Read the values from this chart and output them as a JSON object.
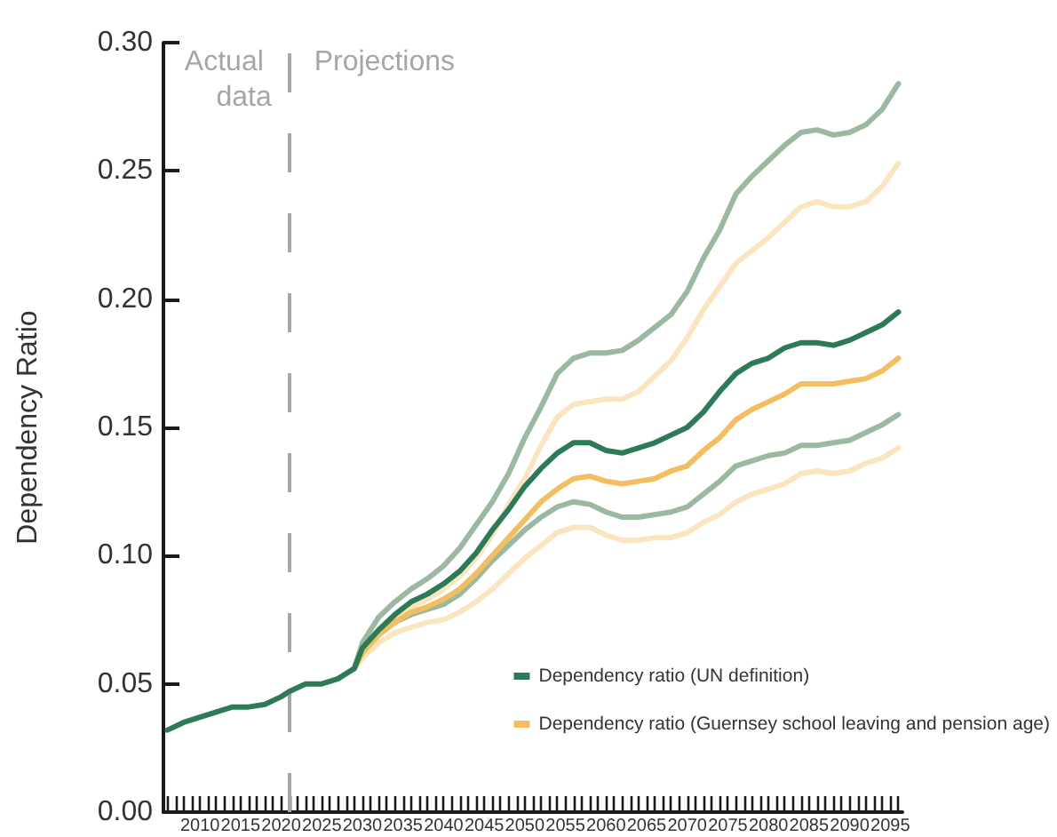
{
  "chart_data": {
    "type": "line",
    "ylabel": "Dependency Ratio",
    "annotations": [
      "Actual data",
      "Projections"
    ],
    "ref_lines": [
      {
        "axis": "x",
        "value": 2021,
        "color": "#a6a6a6",
        "line_style": "dashed"
      }
    ],
    "x": [
      2006,
      2008,
      2010,
      2012,
      2014,
      2016,
      2018,
      2020,
      2021,
      2023,
      2025,
      2027,
      2029,
      2030,
      2032,
      2034,
      2036,
      2038,
      2040,
      2042,
      2044,
      2046,
      2048,
      2050,
      2052,
      2054,
      2056,
      2058,
      2060,
      2062,
      2064,
      2066,
      2068,
      2070,
      2072,
      2074,
      2076,
      2078,
      2080,
      2082,
      2084,
      2086,
      2088,
      2090,
      2092,
      2094,
      2096
    ],
    "series": [
      {
        "name": "Dependency ratio (UN definition)",
        "color": "#2c7a56",
        "values": [
          0.032,
          0.035,
          0.037,
          0.039,
          0.041,
          0.041,
          0.042,
          0.045,
          0.047,
          0.05,
          0.05,
          0.052,
          0.056,
          0.064,
          0.071,
          0.077,
          0.082,
          0.085,
          0.089,
          0.094,
          0.101,
          0.11,
          0.118,
          0.127,
          0.134,
          0.14,
          0.144,
          0.144,
          0.141,
          0.14,
          0.142,
          0.144,
          0.147,
          0.15,
          0.156,
          0.164,
          0.171,
          0.175,
          0.177,
          0.181,
          0.183,
          0.183,
          0.182,
          0.184,
          0.187,
          0.19,
          0.195
        ]
      },
      {
        "name": "Dependency ratio (Guernsey school leaving and pension age)",
        "color": "#f3bd62",
        "values": [
          null,
          null,
          null,
          null,
          null,
          null,
          null,
          null,
          null,
          null,
          null,
          null,
          0.056,
          0.062,
          0.069,
          0.074,
          0.078,
          0.08,
          0.083,
          0.087,
          0.093,
          0.1,
          0.107,
          0.114,
          0.121,
          0.126,
          0.13,
          0.131,
          0.129,
          0.128,
          0.129,
          0.13,
          0.133,
          0.135,
          0.141,
          0.146,
          0.153,
          0.157,
          0.16,
          0.163,
          0.167,
          0.167,
          0.167,
          0.168,
          0.169,
          0.172,
          0.177
        ]
      },
      {
        "color": "#9bb8a0",
        "values": [
          null,
          null,
          null,
          null,
          null,
          null,
          null,
          null,
          null,
          null,
          null,
          null,
          0.056,
          0.066,
          0.076,
          0.082,
          0.087,
          0.091,
          0.096,
          0.103,
          0.112,
          0.121,
          0.132,
          0.146,
          0.158,
          0.171,
          0.177,
          0.179,
          0.179,
          0.18,
          0.184,
          0.189,
          0.194,
          0.203,
          0.216,
          0.227,
          0.241,
          0.248,
          0.254,
          0.26,
          0.265,
          0.266,
          0.264,
          0.265,
          0.268,
          0.274,
          0.284
        ]
      },
      {
        "color": "#9bb8a0",
        "values": [
          null,
          null,
          null,
          null,
          null,
          null,
          null,
          null,
          null,
          null,
          null,
          null,
          0.056,
          0.063,
          0.07,
          0.074,
          0.077,
          0.079,
          0.081,
          0.085,
          0.091,
          0.098,
          0.104,
          0.11,
          0.115,
          0.119,
          0.121,
          0.12,
          0.117,
          0.115,
          0.115,
          0.116,
          0.117,
          0.119,
          0.124,
          0.129,
          0.135,
          0.137,
          0.139,
          0.14,
          0.143,
          0.143,
          0.144,
          0.145,
          0.148,
          0.151,
          0.155
        ]
      },
      {
        "color": "#fbe5bf",
        "values": [
          null,
          null,
          null,
          null,
          null,
          null,
          null,
          null,
          null,
          null,
          null,
          null,
          0.056,
          0.065,
          0.071,
          0.076,
          0.08,
          0.083,
          0.087,
          0.092,
          0.099,
          0.108,
          0.12,
          0.13,
          0.143,
          0.154,
          0.159,
          0.16,
          0.161,
          0.161,
          0.164,
          0.17,
          0.176,
          0.185,
          0.196,
          0.205,
          0.214,
          0.219,
          0.224,
          0.23,
          0.236,
          0.238,
          0.236,
          0.236,
          0.238,
          0.244,
          0.253
        ]
      },
      {
        "color": "#fbe5bf",
        "values": [
          null,
          null,
          null,
          null,
          null,
          null,
          null,
          null,
          null,
          null,
          null,
          null,
          0.056,
          0.06,
          0.066,
          0.07,
          0.072,
          0.074,
          0.075,
          0.078,
          0.082,
          0.087,
          0.093,
          0.099,
          0.104,
          0.109,
          0.111,
          0.111,
          0.108,
          0.106,
          0.106,
          0.107,
          0.107,
          0.109,
          0.113,
          0.116,
          0.121,
          0.124,
          0.126,
          0.128,
          0.132,
          0.133,
          0.132,
          0.133,
          0.136,
          0.138,
          0.142
        ]
      }
    ],
    "xlim": [
      2005.5,
      2096.5
    ],
    "xticks": [
      {
        "value": 2006,
        "label": null
      },
      {
        "value": 2007,
        "label": null
      },
      {
        "value": 2008,
        "label": null
      },
      {
        "value": 2009,
        "label": null
      },
      2010,
      {
        "value": 2011,
        "label": null
      },
      {
        "value": 2012,
        "label": null
      },
      {
        "value": 2013,
        "label": null
      },
      {
        "value": 2014,
        "label": null
      },
      2015,
      {
        "value": 2016,
        "label": null
      },
      {
        "value": 2017,
        "label": null
      },
      {
        "value": 2018,
        "label": null
      },
      {
        "value": 2019,
        "label": null
      },
      2020,
      {
        "value": 2021,
        "label": null
      },
      {
        "value": 2022,
        "label": null
      },
      {
        "value": 2023,
        "label": null
      },
      {
        "value": 2024,
        "label": null
      },
      2025,
      {
        "value": 2026,
        "label": null
      },
      {
        "value": 2027,
        "label": null
      },
      {
        "value": 2028,
        "label": null
      },
      {
        "value": 2029,
        "label": null
      },
      2030,
      {
        "value": 2031,
        "label": null
      },
      {
        "value": 2032,
        "label": null
      },
      {
        "value": 2033,
        "label": null
      },
      {
        "value": 2034,
        "label": null
      },
      2035,
      {
        "value": 2036,
        "label": null
      },
      {
        "value": 2037,
        "label": null
      },
      {
        "value": 2038,
        "label": null
      },
      {
        "value": 2039,
        "label": null
      },
      2040,
      {
        "value": 2041,
        "label": null
      },
      {
        "value": 2042,
        "label": null
      },
      {
        "value": 2043,
        "label": null
      },
      {
        "value": 2044,
        "label": null
      },
      2045,
      {
        "value": 2046,
        "label": null
      },
      {
        "value": 2047,
        "label": null
      },
      {
        "value": 2048,
        "label": null
      },
      {
        "value": 2049,
        "label": null
      },
      2050,
      {
        "value": 2051,
        "label": null
      },
      {
        "value": 2052,
        "label": null
      },
      {
        "value": 2053,
        "label": null
      },
      {
        "value": 2054,
        "label": null
      },
      2055,
      {
        "value": 2056,
        "label": null
      },
      {
        "value": 2057,
        "label": null
      },
      {
        "value": 2058,
        "label": null
      },
      {
        "value": 2059,
        "label": null
      },
      2060,
      {
        "value": 2061,
        "label": null
      },
      {
        "value": 2062,
        "label": null
      },
      {
        "value": 2063,
        "label": null
      },
      {
        "value": 2064,
        "label": null
      },
      2065,
      {
        "value": 2066,
        "label": null
      },
      {
        "value": 2067,
        "label": null
      },
      {
        "value": 2068,
        "label": null
      },
      {
        "value": 2069,
        "label": null
      },
      2070,
      {
        "value": 2071,
        "label": null
      },
      {
        "value": 2072,
        "label": null
      },
      {
        "value": 2073,
        "label": null
      },
      {
        "value": 2074,
        "label": null
      },
      2075,
      {
        "value": 2076,
        "label": null
      },
      {
        "value": 2077,
        "label": null
      },
      {
        "value": 2078,
        "label": null
      },
      {
        "value": 2079,
        "label": null
      },
      2080,
      {
        "value": 2081,
        "label": null
      },
      {
        "value": 2082,
        "label": null
      },
      {
        "value": 2083,
        "label": null
      },
      {
        "value": 2084,
        "label": null
      },
      2085,
      {
        "value": 2086,
        "label": null
      },
      {
        "value": 2087,
        "label": null
      },
      {
        "value": 2088,
        "label": null
      },
      {
        "value": 2089,
        "label": null
      },
      2090,
      {
        "value": 2091,
        "label": null
      },
      {
        "value": 2092,
        "label": null
      },
      {
        "value": 2093,
        "label": null
      },
      {
        "value": 2094,
        "label": null
      },
      2095,
      {
        "value": 2096,
        "label": null
      }
    ],
    "ylim": [
      0,
      0.3
    ],
    "yticks": [
      {
        "value": 0,
        "label": "0.00"
      },
      0.05,
      {
        "value": 0.1,
        "label": "0.10"
      },
      0.15,
      {
        "value": 0.2,
        "label": "0.20"
      },
      0.25,
      {
        "value": 0.3,
        "label": "0.30"
      }
    ],
    "grid": false,
    "legend": "bottom right",
    "marker": "none",
    "line_style": "solid"
  }
}
